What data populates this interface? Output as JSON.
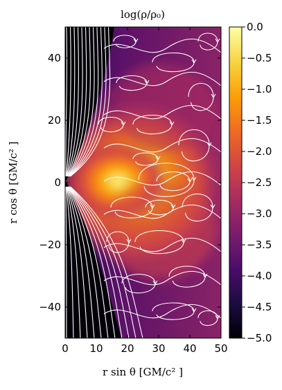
{
  "chart_data": {
    "type": "heatmap",
    "title": "log(ρ/ρ₀)",
    "xlabel": "r sin θ [GM/c² ]",
    "ylabel": "r cos θ [GM/c² ]",
    "xlim": [
      0,
      50
    ],
    "ylim": [
      -50,
      50
    ],
    "x_ticks": [
      0,
      10,
      20,
      30,
      40,
      50
    ],
    "y_ticks": [
      -40,
      -20,
      0,
      20,
      40
    ],
    "colorbar": {
      "range": [
        -5.0,
        0.0
      ],
      "ticks": [
        "0.0",
        "−0.5",
        "−1.0",
        "−1.5",
        "−2.0",
        "−2.5",
        "−3.0",
        "−3.5",
        "−4.0",
        "−4.5",
        "−5.0"
      ],
      "colormap": [
        "#000004",
        "#1b0c41",
        "#4a0c6b",
        "#781c6d",
        "#a52c60",
        "#cf4446",
        "#ed6925",
        "#fb9b06",
        "#f7d13d",
        "#fcffa4"
      ]
    },
    "overlay": "white streamlines"
  }
}
